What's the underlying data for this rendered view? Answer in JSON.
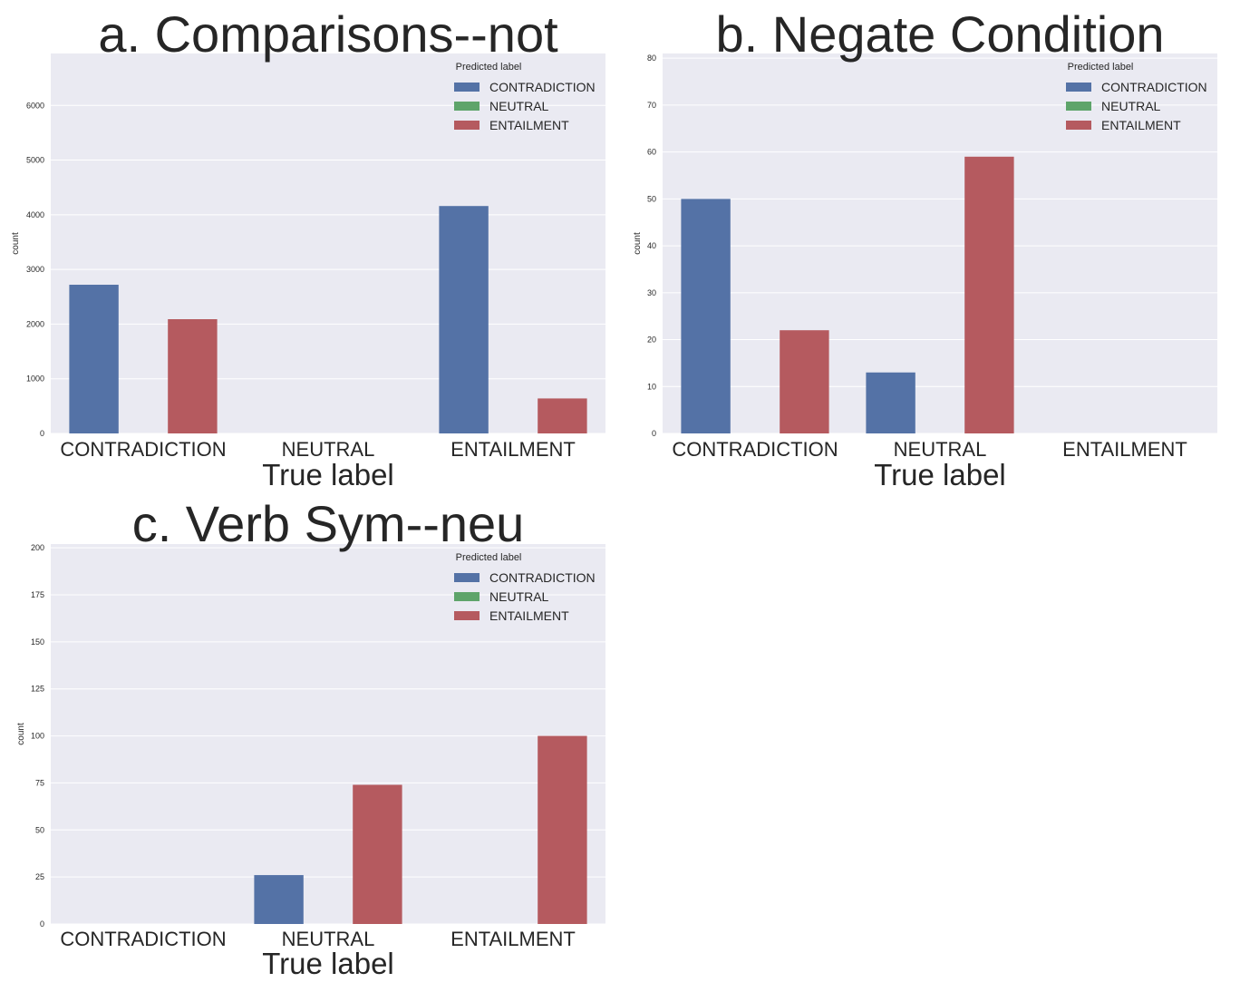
{
  "legend_title": "Predicted label",
  "legend_entries": [
    "CONTRADICTION",
    "NEUTRAL",
    "ENTAILMENT"
  ],
  "colors": {
    "CONTRADICTION": "#5472a6",
    "NEUTRAL": "#5ea46a",
    "ENTAILMENT": "#b55a5f",
    "plot_bg": "#eaeaf2",
    "grid": "#ffffff",
    "text": "#262626"
  },
  "chart_data": [
    {
      "type": "bar",
      "title": "a. Comparisons--not",
      "xlabel": "True label",
      "ylabel": "count",
      "categories": [
        "CONTRADICTION",
        "NEUTRAL",
        "ENTAILMENT"
      ],
      "ylim": [
        0,
        6950
      ],
      "yticks": [
        0,
        1000,
        2000,
        3000,
        4000,
        5000,
        6000
      ],
      "legend_title": "Predicted label",
      "legend_position": "top-right",
      "grid": true,
      "series": [
        {
          "name": "CONTRADICTION",
          "values": [
            2720,
            0,
            4160
          ]
        },
        {
          "name": "NEUTRAL",
          "values": [
            0,
            0,
            0
          ]
        },
        {
          "name": "ENTAILMENT",
          "values": [
            2090,
            0,
            640
          ]
        }
      ]
    },
    {
      "type": "bar",
      "title": "b. Negate Condition",
      "xlabel": "True label",
      "ylabel": "count",
      "categories": [
        "CONTRADICTION",
        "NEUTRAL",
        "ENTAILMENT"
      ],
      "ylim": [
        0,
        81
      ],
      "yticks": [
        0,
        10,
        20,
        30,
        40,
        50,
        60,
        70,
        80
      ],
      "legend_title": "Predicted label",
      "legend_position": "top-right",
      "grid": true,
      "series": [
        {
          "name": "CONTRADICTION",
          "values": [
            50,
            13,
            0
          ]
        },
        {
          "name": "NEUTRAL",
          "values": [
            0,
            0,
            0
          ]
        },
        {
          "name": "ENTAILMENT",
          "values": [
            22,
            59,
            0
          ]
        }
      ]
    },
    {
      "type": "bar",
      "title": "c. Verb Sym--neu",
      "xlabel": "True label",
      "ylabel": "count",
      "categories": [
        "CONTRADICTION",
        "NEUTRAL",
        "ENTAILMENT"
      ],
      "ylim": [
        0,
        202
      ],
      "yticks": [
        0,
        25,
        50,
        75,
        100,
        125,
        150,
        175,
        200
      ],
      "legend_title": "Predicted label",
      "legend_position": "top-right",
      "grid": true,
      "series": [
        {
          "name": "CONTRADICTION",
          "values": [
            0,
            26,
            0
          ]
        },
        {
          "name": "NEUTRAL",
          "values": [
            0,
            0,
            0
          ]
        },
        {
          "name": "ENTAILMENT",
          "values": [
            0,
            74,
            100
          ]
        }
      ]
    }
  ]
}
